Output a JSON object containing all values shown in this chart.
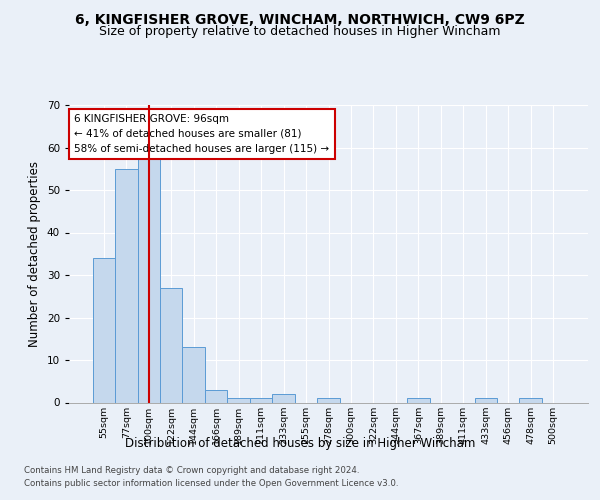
{
  "title1": "6, KINGFISHER GROVE, WINCHAM, NORTHWICH, CW9 6PZ",
  "title2": "Size of property relative to detached houses in Higher Wincham",
  "xlabel": "Distribution of detached houses by size in Higher Wincham",
  "ylabel": "Number of detached properties",
  "categories": [
    "55sqm",
    "77sqm",
    "100sqm",
    "122sqm",
    "144sqm",
    "166sqm",
    "189sqm",
    "211sqm",
    "233sqm",
    "255sqm",
    "278sqm",
    "300sqm",
    "322sqm",
    "344sqm",
    "367sqm",
    "389sqm",
    "411sqm",
    "433sqm",
    "456sqm",
    "478sqm",
    "500sqm"
  ],
  "values": [
    34,
    55,
    58,
    27,
    13,
    3,
    1,
    1,
    2,
    0,
    1,
    0,
    0,
    0,
    1,
    0,
    0,
    1,
    0,
    1,
    0
  ],
  "bar_color": "#c5d8ed",
  "bar_edge_color": "#5b9bd5",
  "marker_index": 2,
  "marker_color": "#cc0000",
  "annotation_line1": "6 KINGFISHER GROVE: 96sqm",
  "annotation_line2": "← 41% of detached houses are smaller (81)",
  "annotation_line3": "58% of semi-detached houses are larger (115) →",
  "annotation_box_color": "#ffffff",
  "annotation_box_edge": "#cc0000",
  "footnote1": "Contains HM Land Registry data © Crown copyright and database right 2024.",
  "footnote2": "Contains public sector information licensed under the Open Government Licence v3.0.",
  "bg_color": "#eaf0f8",
  "plot_bg_color": "#eaf0f8",
  "ylim": [
    0,
    70
  ],
  "yticks": [
    0,
    10,
    20,
    30,
    40,
    50,
    60,
    70
  ],
  "grid_color": "#ffffff",
  "title1_fontsize": 10,
  "title2_fontsize": 9,
  "xlabel_fontsize": 8.5,
  "ylabel_fontsize": 8.5
}
